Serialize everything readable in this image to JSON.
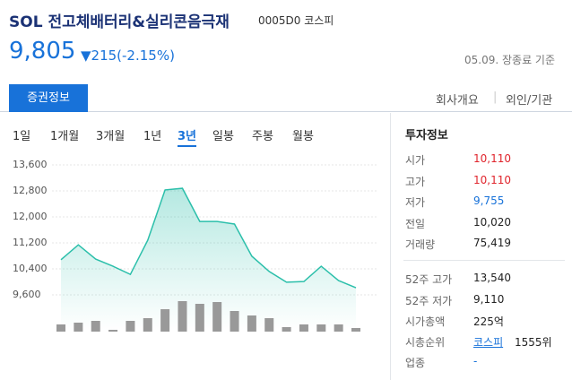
{
  "header": {
    "title": "SOL 전고체배터리&실리콘음극재",
    "code": "0005D0 코스피",
    "price": "9,805",
    "change": "▼215(-2.15%)",
    "as_of": "05.09. 장종료 기준"
  },
  "tabs": {
    "active": "증권정보",
    "others": [
      "회사개요",
      "외인/기관"
    ]
  },
  "periods": {
    "items": [
      "1일",
      "1개월",
      "3개월",
      "1년",
      "3년",
      "일봉",
      "주봉",
      "월봉"
    ],
    "selected": 4
  },
  "chart_data": {
    "type": "line",
    "categories": [
      null,
      null,
      null,
      null,
      null,
      null,
      null,
      null,
      null,
      null,
      null,
      null,
      null,
      null,
      null,
      null,
      null,
      null
    ],
    "series": [
      {
        "name": null,
        "color": "#2bbfaa",
        "values": [
          10680,
          11140,
          10700,
          10480,
          10230,
          11280,
          12830,
          12880,
          11860,
          11860,
          11780,
          10790,
          10320,
          9990,
          10010,
          10480,
          10040,
          9820
        ]
      },
      {
        "name": null,
        "color": "#999999",
        "axis": "y2",
        "type": "bar",
        "values": [
          8,
          10,
          12,
          2,
          12,
          15,
          25,
          34,
          31,
          33,
          23,
          18,
          15,
          5,
          8,
          8,
          8,
          4
        ]
      }
    ],
    "ylim": [
      9600,
      13600
    ],
    "yticks": [
      {
        "value": 9600,
        "label": "9,600"
      },
      {
        "value": 10400,
        "label": "10,400"
      },
      {
        "value": 11200,
        "label": "11,200"
      },
      {
        "value": 12000,
        "label": "12,000"
      },
      {
        "value": 12800,
        "label": "12,800"
      },
      {
        "value": 13600,
        "label": "13,600"
      }
    ],
    "y2lim": [
      0,
      40
    ],
    "grid": true
  },
  "info": {
    "title": "투자정보",
    "rows": [
      {
        "label": "시가",
        "value": "10,110",
        "color": "#e0242c"
      },
      {
        "label": "고가",
        "value": "10,110",
        "color": "#e0242c"
      },
      {
        "label": "저가",
        "value": "9,755",
        "color": "#1872d9"
      },
      {
        "label": "전일",
        "value": "10,020",
        "color": "#222222"
      },
      {
        "label": "거래량",
        "value": "75,419",
        "color": "#222222"
      }
    ],
    "rows2": [
      {
        "label": "52주 고가",
        "value": "13,540"
      },
      {
        "label": "52주 저가",
        "value": "9,110"
      },
      {
        "label": "시가총액",
        "value": "225억"
      }
    ],
    "rank": {
      "label": "시총순위",
      "link": "코스피",
      "value": "1555위"
    },
    "sector": {
      "label": "업종",
      "value": "-"
    }
  }
}
